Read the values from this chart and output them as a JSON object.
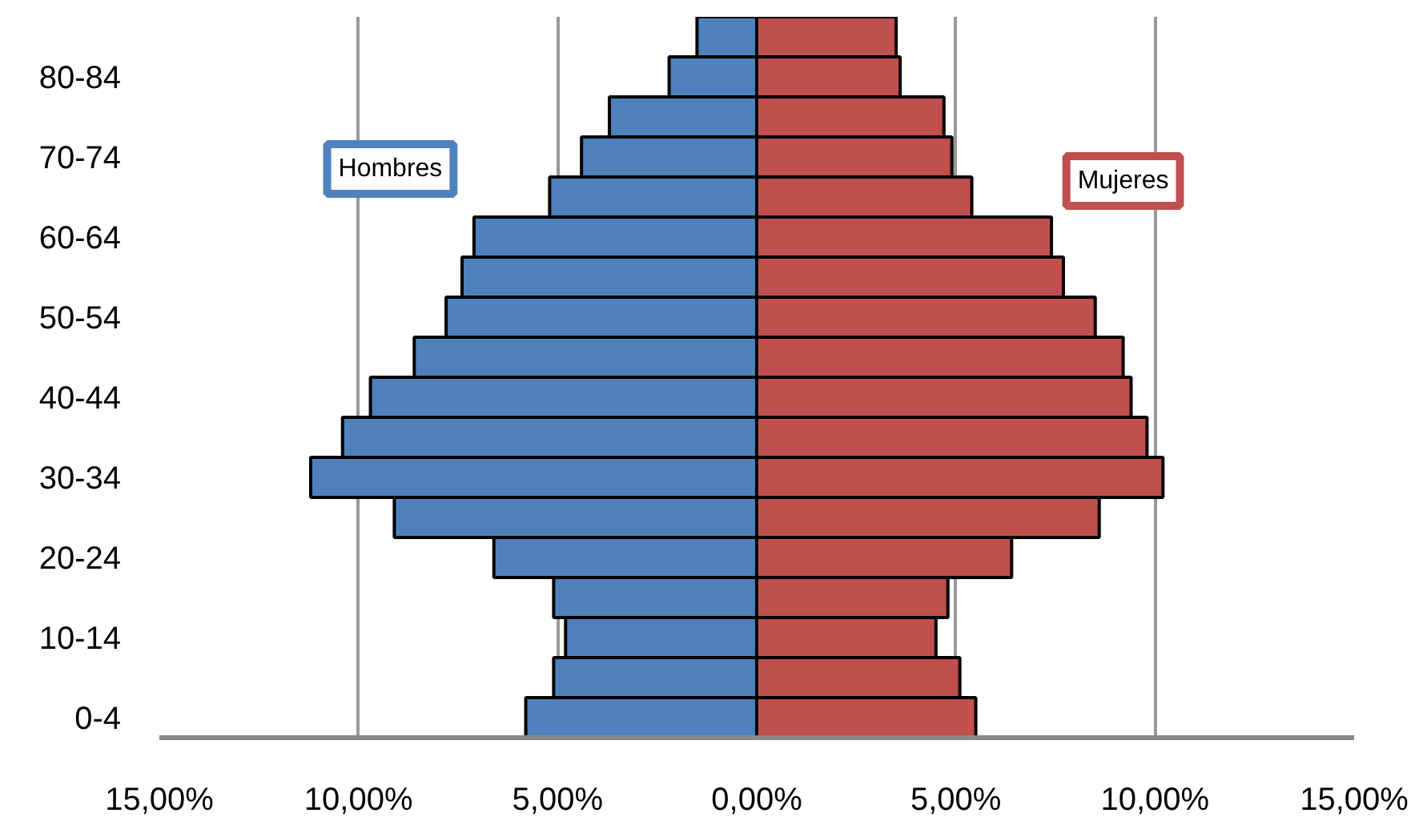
{
  "chart_data": {
    "type": "bar",
    "orientation": "horizontal",
    "categories": [
      null,
      "80-84",
      null,
      "70-74",
      null,
      "60-64",
      null,
      "50-54",
      null,
      "40-44",
      null,
      "30-34",
      null,
      "20-24",
      null,
      "10-14",
      null,
      "0-4"
    ],
    "series": [
      {
        "name": "Hombres",
        "color": "#4f81bd",
        "values": [
          -1.5,
          -2.2,
          -3.7,
          -4.4,
          -5.2,
          -7.1,
          -7.4,
          -7.8,
          -8.6,
          -9.7,
          -10.4,
          -11.2,
          -9.1,
          -6.6,
          -5.1,
          -4.8,
          -5.1,
          -5.8
        ]
      },
      {
        "name": "Mujeres",
        "color": "#c0504d",
        "values": [
          3.5,
          3.6,
          4.7,
          4.9,
          5.4,
          7.4,
          7.7,
          8.5,
          9.2,
          9.4,
          9.8,
          10.2,
          8.6,
          6.4,
          4.8,
          4.5,
          5.1,
          5.5
        ]
      }
    ],
    "xlim": [
      -15,
      15
    ],
    "xticks": [
      {
        "value": -15,
        "label": "15,00%"
      },
      {
        "value": -10,
        "label": "10,00%"
      },
      {
        "value": -5,
        "label": "5,00%"
      },
      {
        "value": 0,
        "label": "0,00%"
      },
      {
        "value": 5,
        "label": "5,00%"
      },
      {
        "value": 10,
        "label": "10,00%"
      },
      {
        "value": 15,
        "label": "15,00%"
      }
    ],
    "stacked": true,
    "grid": "x"
  }
}
